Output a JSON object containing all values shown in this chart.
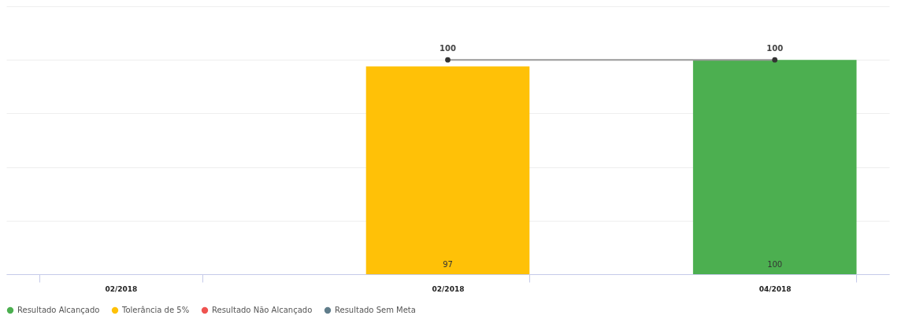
{
  "chart_data": {
    "type": "bar",
    "categories": [
      "02/2018",
      "02/2018",
      "04/2018"
    ],
    "series": [
      {
        "name": "Resultado Alcançado",
        "color": "#4caf50",
        "values": [
          null,
          null,
          100
        ]
      },
      {
        "name": "Tolerância de 5%",
        "color": "#ffc107",
        "values": [
          null,
          97,
          null
        ]
      },
      {
        "name": "Resultado Não Alcançado",
        "color": "#ef5350",
        "values": [
          null,
          null,
          null
        ]
      },
      {
        "name": "Resultado Sem Meta",
        "color": "#607d8b",
        "values": [
          null,
          null,
          null
        ]
      },
      {
        "type": "line",
        "color": "#999999",
        "values": [
          null,
          100,
          100
        ]
      }
    ],
    "data_labels": true,
    "marker": "circle",
    "grid": "y",
    "tick_labels": "x",
    "legend": "bottom",
    "ylim": [
      0,
      125
    ],
    "yticks": [
      {
        "value": 0,
        "label": null
      },
      {
        "value": 25,
        "label": null
      },
      {
        "value": 50,
        "label": null
      },
      {
        "value": 75,
        "label": null
      },
      {
        "value": 100,
        "label": null
      },
      {
        "value": 125,
        "label": null
      }
    ]
  }
}
